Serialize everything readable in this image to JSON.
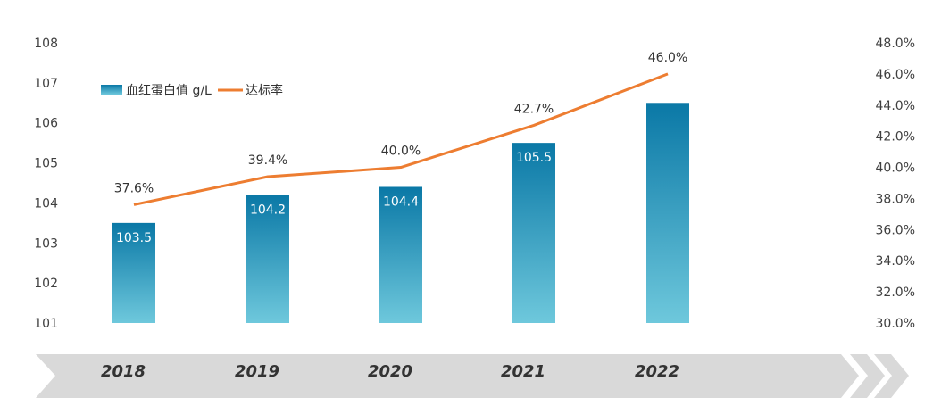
{
  "chart_data": {
    "type": "bar",
    "categories": [
      "2018",
      "2019",
      "2020",
      "2021",
      "2022"
    ],
    "series": [
      {
        "name": "血红蛋白值 g/L",
        "type": "bar",
        "axis": "left",
        "values": [
          103.5,
          104.2,
          104.4,
          105.5,
          106.5
        ],
        "data_labels": [
          "103.5",
          "104.2",
          "104.4",
          "105.5",
          ""
        ],
        "color_top": "#0a78a6",
        "color_bottom": "#6ec8dc"
      },
      {
        "name": "达标率",
        "type": "line",
        "axis": "right",
        "values": [
          37.6,
          39.4,
          40.0,
          42.7,
          46.0
        ],
        "data_labels": [
          "37.6%",
          "39.4%",
          "40.0%",
          "42.7%",
          "46.0%"
        ],
        "color": "#ed7d31"
      }
    ],
    "y_left": {
      "ylim": [
        101,
        108
      ],
      "ticks": [
        "101",
        "102",
        "103",
        "104",
        "105",
        "106",
        "107",
        "108"
      ]
    },
    "y_right": {
      "ylim": [
        30,
        48
      ],
      "ticks": [
        "30.0%",
        "32.0%",
        "34.0%",
        "36.0%",
        "38.0%",
        "40.0%",
        "42.0%",
        "44.0%",
        "46.0%",
        "48.0%"
      ]
    },
    "legend_position": "top-left",
    "grid": false,
    "timeline_band_color": "#d9d9d9"
  }
}
